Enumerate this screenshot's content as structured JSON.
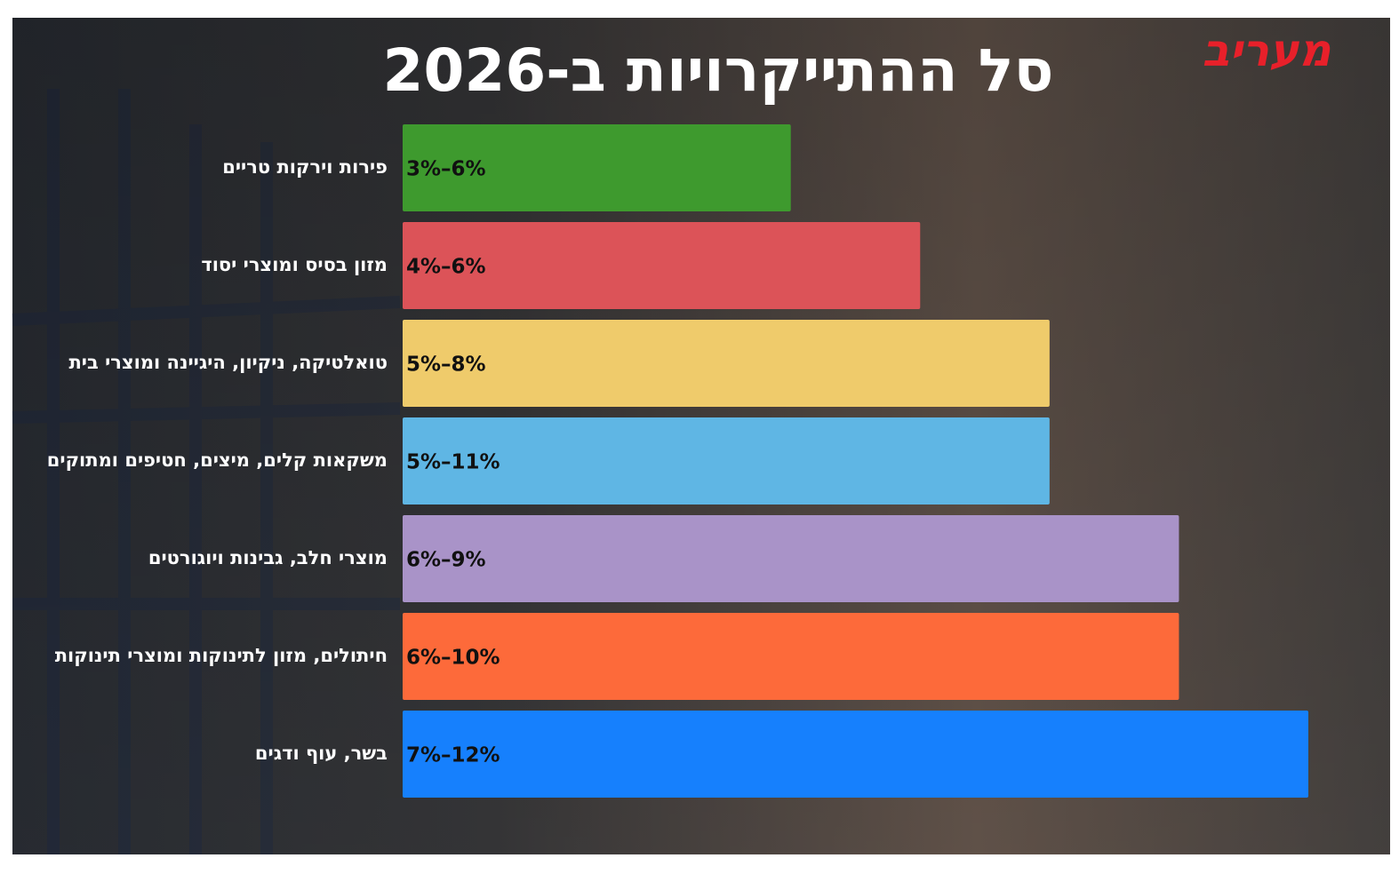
{
  "logo": "מעריב",
  "chart_data": {
    "type": "bar",
    "orientation": "horizontal",
    "title": "סל ההתייקרויות ב-2026",
    "categories": [
      "פירות וירקות טריים",
      "מזון בסיס ומוצרי יסוד",
      "טואלטיקה, ניקיון, היגיינה ומוצרי בית",
      "משקאות קלים, מיצים, חטיפים ומתוקים",
      "מוצרי חלב, גבינות ויוגורטים",
      "חיתולים, מזון לתינוקות ומוצרי תינוקות",
      "בשר, עוף ודגים"
    ],
    "values": [
      3,
      4,
      5,
      5,
      6,
      6,
      7
    ],
    "value_labels": [
      "3%–6%",
      "4%–6%",
      "5%–8%",
      "5%–11%",
      "6%–9%",
      "6%–10%",
      "7%–12%"
    ],
    "colors": [
      "#3e9a2e",
      "#dc5358",
      "#efcb6b",
      "#5fb6e4",
      "#a993c8",
      "#fd6a3a",
      "#1680fd"
    ]
  }
}
